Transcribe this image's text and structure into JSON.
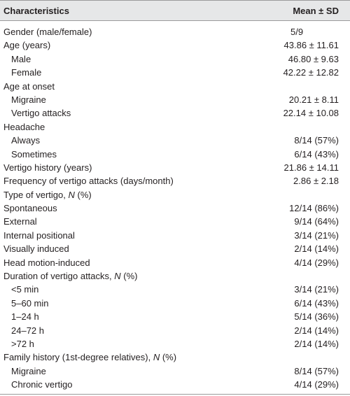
{
  "table": {
    "header": {
      "characteristics": "Characteristics",
      "mean_sd": "Mean ± SD"
    },
    "rows": [
      {
        "label": "Gender (male/female)",
        "value": "5/9",
        "indent": false,
        "center": true
      },
      {
        "label": "Age (years)",
        "value": "43.86 ± 11.61",
        "indent": false
      },
      {
        "label": "Male",
        "value": "46.80 ± 9.63",
        "indent": true
      },
      {
        "label": "Female",
        "value": "42.22 ± 12.82",
        "indent": true
      },
      {
        "label": "Age at onset",
        "value": "",
        "indent": false
      },
      {
        "label": "Migraine",
        "value": "20.21 ± 8.11",
        "indent": true
      },
      {
        "label": "Vertigo attacks",
        "value": "22.14 ± 10.08",
        "indent": true
      },
      {
        "label": "Headache",
        "value": "",
        "indent": false
      },
      {
        "label": "Always",
        "value": "8/14 (57%)",
        "indent": true
      },
      {
        "label": "Sometimes",
        "value": "6/14 (43%)",
        "indent": true
      },
      {
        "label": "Vertigo history (years)",
        "value": "21.86 ± 14.11",
        "indent": false
      },
      {
        "label": "Frequency of vertigo attacks (days/month)",
        "value": "2.86 ± 2.18",
        "indent": false
      },
      {
        "label": "Type of vertigo, N (%)",
        "value": "",
        "indent": false
      },
      {
        "label": "Spontaneous",
        "value": "12/14 (86%)",
        "indent": false
      },
      {
        "label": "External",
        "value": "9/14 (64%)",
        "indent": false
      },
      {
        "label": "Internal positional",
        "value": "3/14 (21%)",
        "indent": false
      },
      {
        "label": "Visually induced",
        "value": "2/14 (14%)",
        "indent": false
      },
      {
        "label": "Head motion-induced",
        "value": "4/14 (29%)",
        "indent": false
      },
      {
        "label": "Duration of vertigo attacks, N (%)",
        "value": "",
        "indent": false
      },
      {
        "label": "<5 min",
        "value": "3/14 (21%)",
        "indent": true
      },
      {
        "label": "5–60 min",
        "value": "6/14 (43%)",
        "indent": true
      },
      {
        "label": "1–24 h",
        "value": "5/14 (36%)",
        "indent": true
      },
      {
        "label": "24–72 h",
        "value": "2/14 (14%)",
        "indent": true
      },
      {
        "label": ">72 h",
        "value": "2/14 (14%)",
        "indent": true
      },
      {
        "label": "Family history (1st-degree relatives), N (%)",
        "value": "",
        "indent": false
      },
      {
        "label": "Migraine",
        "value": "8/14 (57%)",
        "indent": true
      },
      {
        "label": "Chronic vertigo",
        "value": "4/14 (29%)",
        "indent": true
      }
    ]
  }
}
